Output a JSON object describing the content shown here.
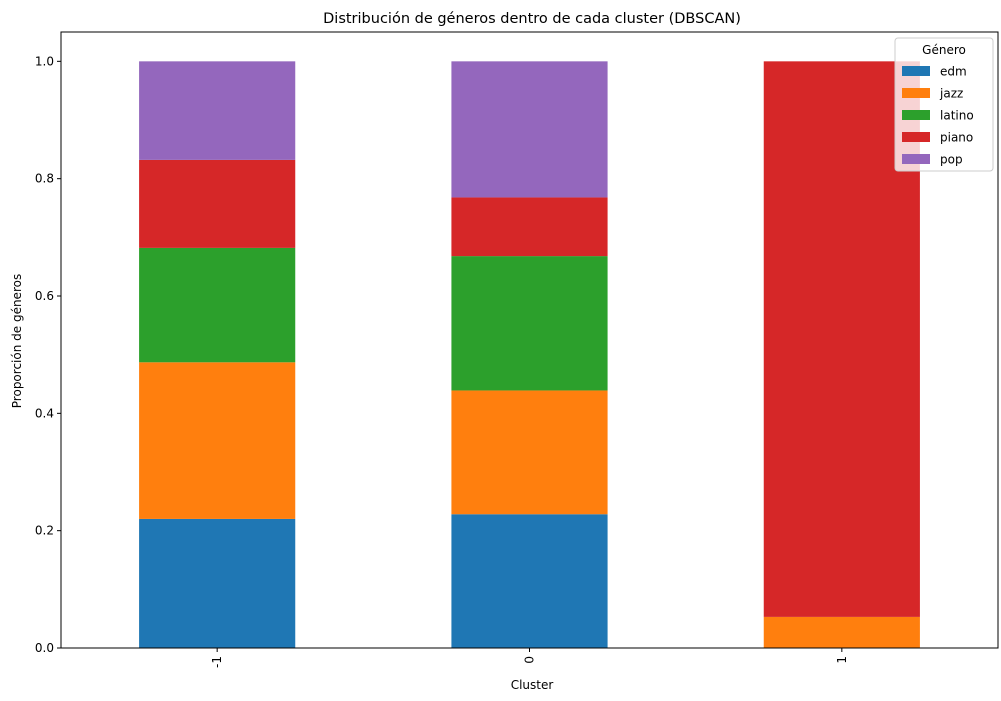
{
  "chart_data": {
    "type": "bar",
    "stacked": true,
    "title": "Distribución de géneros dentro de cada cluster (DBSCAN)",
    "xlabel": "Cluster",
    "ylabel": "Proporción de géneros",
    "categories": [
      "-1",
      "0",
      "1"
    ],
    "ylim": [
      0,
      1.05
    ],
    "yticks": [
      "0.0",
      "0.2",
      "0.4",
      "0.6",
      "0.8",
      "1.0"
    ],
    "legend_title": "Género",
    "legend_position": "top-right",
    "grid": false,
    "series": [
      {
        "name": "edm",
        "color": "#1f77b4",
        "values": [
          0.22,
          0.228,
          0.0
        ]
      },
      {
        "name": "jazz",
        "color": "#ff7f0e",
        "values": [
          0.267,
          0.211,
          0.053
        ]
      },
      {
        "name": "latino",
        "color": "#2ca02c",
        "values": [
          0.195,
          0.229,
          0.0
        ]
      },
      {
        "name": "piano",
        "color": "#d62728",
        "values": [
          0.15,
          0.1,
          0.947
        ]
      },
      {
        "name": "pop",
        "color": "#9467bd",
        "values": [
          0.168,
          0.232,
          0.0
        ]
      }
    ]
  }
}
